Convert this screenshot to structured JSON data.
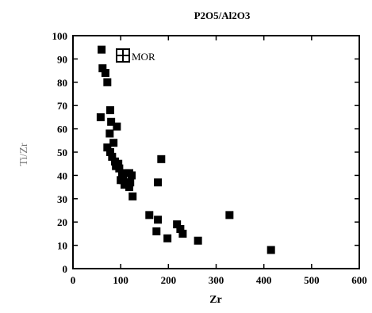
{
  "chart_data": {
    "type": "scatter",
    "title": "P2O5/Al2O3",
    "xlabel": "Zr",
    "ylabel": "Ti/Zr",
    "xlim": [
      0,
      600
    ],
    "ylim": [
      0,
      100
    ],
    "xticks": [
      0,
      100,
      200,
      300,
      400,
      500,
      600
    ],
    "yticks": [
      0,
      10,
      20,
      30,
      40,
      50,
      60,
      70,
      80,
      90,
      100
    ],
    "grid": false,
    "legend_position": "top-left",
    "series": [
      {
        "name": "MOR",
        "marker": "square",
        "color": "#000000",
        "x": [
          60,
          62,
          68,
          72,
          78,
          58,
          80,
          92,
          77,
          72,
          85,
          78,
          82,
          88,
          90,
          97,
          103,
          110,
          118,
          123,
          105,
          112,
          120,
          100,
          115,
          95,
          125,
          108,
          118,
          185,
          178,
          160,
          178,
          175,
          218,
          225,
          230,
          198,
          262,
          328,
          415
        ],
        "y": [
          94,
          86,
          84,
          80,
          68,
          65,
          63,
          61,
          58,
          52,
          54,
          50,
          48,
          46,
          44,
          43,
          40,
          41,
          41,
          40,
          38,
          37,
          37,
          38,
          37,
          45,
          31,
          36,
          35,
          47,
          37,
          23,
          21,
          16,
          19,
          17,
          15,
          13,
          12,
          23,
          8
        ]
      }
    ]
  }
}
